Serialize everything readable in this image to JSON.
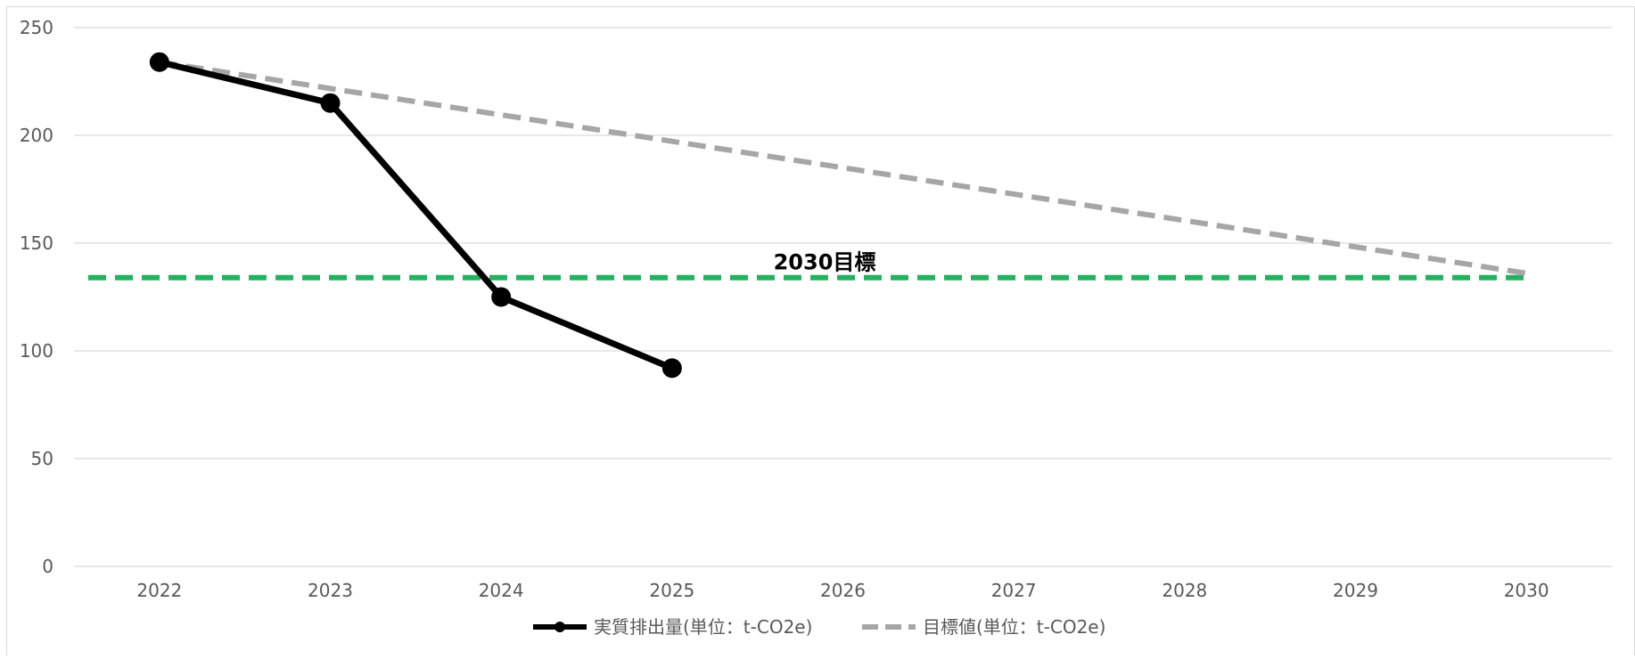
{
  "chart_data": {
    "type": "line",
    "title": "",
    "xlabel": "",
    "ylabel": "",
    "categories": [
      "2022",
      "2023",
      "2024",
      "2025",
      "2026",
      "2027",
      "2028",
      "2029",
      "2030"
    ],
    "ylim": [
      0,
      250
    ],
    "yticks": [
      0,
      50,
      100,
      150,
      200,
      250
    ],
    "grid": true,
    "legend_position": "bottom",
    "series": [
      {
        "name": "実質排出量(単位：t-CO2e)",
        "values": [
          234,
          215,
          125,
          92,
          null,
          null,
          null,
          null,
          null
        ],
        "color": "#000000",
        "style": "solid",
        "marker": "circle"
      },
      {
        "name": "目標値(単位：t-CO2e)",
        "values": [
          234,
          221.75,
          209.5,
          197.25,
          185,
          172.75,
          160.5,
          148.25,
          136
        ],
        "color": "#a6a6a6",
        "style": "dashed",
        "marker": "none"
      }
    ],
    "reference_line": {
      "value": 134,
      "label": "2030目標",
      "color": "#24b25f",
      "style": "dashed"
    }
  }
}
